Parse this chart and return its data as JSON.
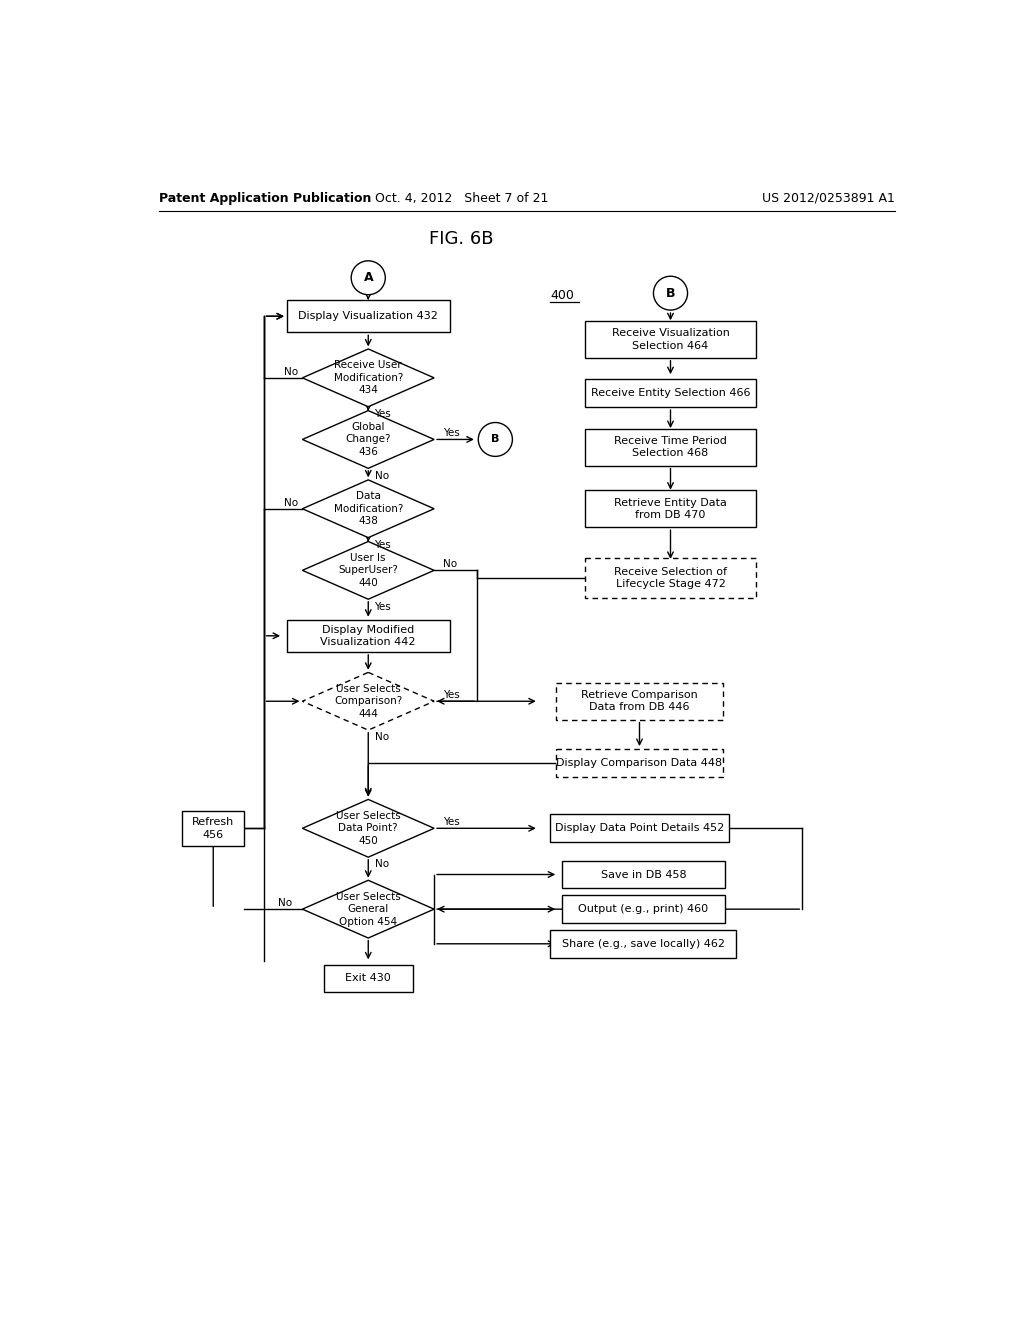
{
  "title": "FIG. 6B",
  "header_left": "Patent Application Publication",
  "header_mid": "Oct. 4, 2012   Sheet 7 of 21",
  "header_right": "US 2012/0253891 A1",
  "bg_color": "#ffffff",
  "flow_label": "400"
}
